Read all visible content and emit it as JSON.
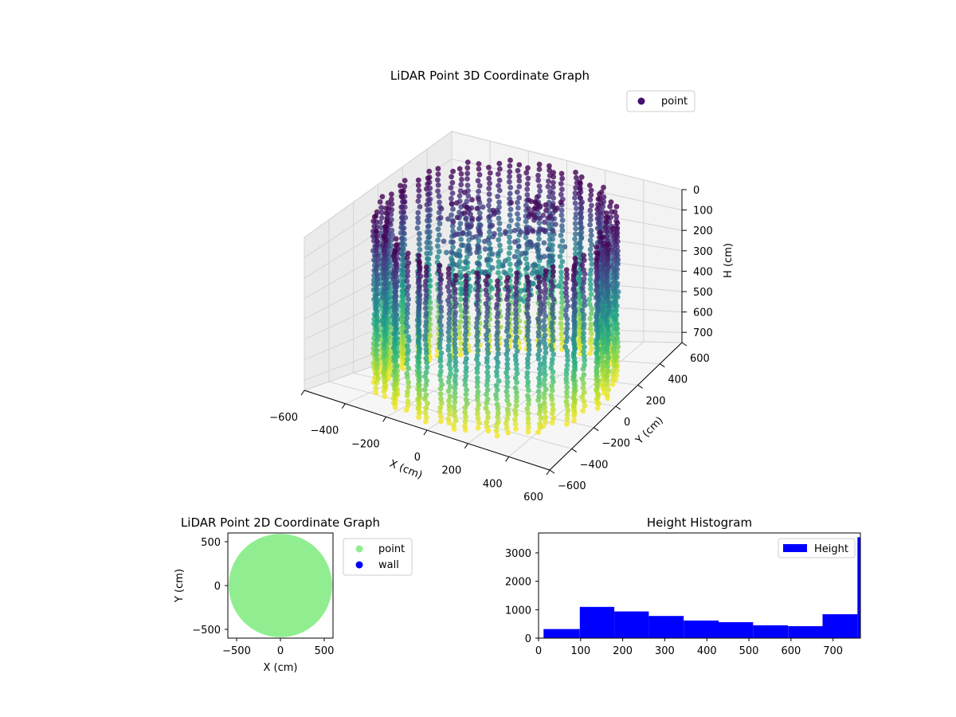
{
  "chart_data": [
    {
      "type": "scatter",
      "projection": "3d",
      "title": "LiDAR Point 3D Coordinate Graph",
      "xlabel": "X (cm)",
      "ylabel": "Y (cm)",
      "zlabel": "H (cm)",
      "xlim": [
        -600,
        600
      ],
      "ylim": [
        -600,
        600
      ],
      "zlim": [
        750,
        0
      ],
      "x_ticks": [
        -600,
        -400,
        -200,
        0,
        200,
        400,
        600
      ],
      "y_ticks": [
        -600,
        -400,
        -200,
        0,
        200,
        400,
        600
      ],
      "z_ticks": [
        0,
        100,
        200,
        300,
        400,
        500,
        600,
        700
      ],
      "x_tick_labels": [
        "−600",
        "−400",
        "−200",
        "0",
        "200",
        "400",
        "600"
      ],
      "y_tick_labels": [
        "−600",
        "−400",
        "−200",
        "0",
        "200",
        "400",
        "600"
      ],
      "z_tick_labels": [
        "0",
        "100",
        "200",
        "300",
        "400",
        "500",
        "600",
        "700"
      ],
      "colormap": "viridis",
      "color_by": "height",
      "grid": true,
      "legend_position": "upper-right",
      "series": [
        {
          "name": "point",
          "legend_color": "#440f6e",
          "shape": "cylindrical wall of vertical point columns, radius about 520 cm, heights 0 to 760 cm",
          "wall_radius": 520,
          "wall_columns": 72,
          "height_range": [
            0,
            760
          ],
          "interior_clusters": [
            {
              "x": -200,
              "y": 120,
              "spread": 160,
              "count": 120
            },
            {
              "x": 60,
              "y": 220,
              "spread": 140,
              "count": 110
            }
          ]
        }
      ]
    },
    {
      "type": "scatter",
      "title": "LiDAR Point 2D Coordinate Graph",
      "xlabel": "X (cm)",
      "ylabel": "Y (cm)",
      "xlim": [
        -600,
        600
      ],
      "ylim": [
        -600,
        600
      ],
      "x_ticks": [
        -500,
        0,
        500
      ],
      "y_ticks": [
        -500,
        0,
        500
      ],
      "x_tick_labels": [
        "−500",
        "0",
        "500"
      ],
      "y_tick_labels": [
        "−500",
        "0",
        "500"
      ],
      "legend_position": "outside-right",
      "series": [
        {
          "name": "point",
          "color": "#90ee90",
          "shape": "filled disk",
          "center": [
            0,
            0
          ],
          "radius": 590
        },
        {
          "name": "wall",
          "color": "#0000ff",
          "points": []
        }
      ]
    },
    {
      "type": "histogram",
      "title": "Height Histogram",
      "xlim": [
        0,
        765
      ],
      "ylim": [
        0,
        3700
      ],
      "x_ticks": [
        0,
        100,
        200,
        300,
        400,
        500,
        600,
        700
      ],
      "y_ticks": [
        0,
        1000,
        2000,
        3000
      ],
      "x_tick_labels": [
        "0",
        "100",
        "200",
        "300",
        "400",
        "500",
        "600",
        "700"
      ],
      "y_tick_labels": [
        "0",
        "1000",
        "2000",
        "3000"
      ],
      "legend_position": "upper-right",
      "series": [
        {
          "name": "Height",
          "color": "#0000ff",
          "bins": [
            {
              "x0": 12,
              "x1": 98,
              "value": 320
            },
            {
              "x0": 98,
              "x1": 180,
              "value": 1100
            },
            {
              "x0": 180,
              "x1": 262,
              "value": 940
            },
            {
              "x0": 262,
              "x1": 345,
              "value": 780
            },
            {
              "x0": 345,
              "x1": 428,
              "value": 620
            },
            {
              "x0": 428,
              "x1": 510,
              "value": 560
            },
            {
              "x0": 510,
              "x1": 593,
              "value": 450
            },
            {
              "x0": 593,
              "x1": 675,
              "value": 420
            },
            {
              "x0": 675,
              "x1": 758,
              "value": 840
            },
            {
              "x0": 758,
              "x1": 765,
              "value": 3550
            }
          ]
        }
      ]
    }
  ]
}
